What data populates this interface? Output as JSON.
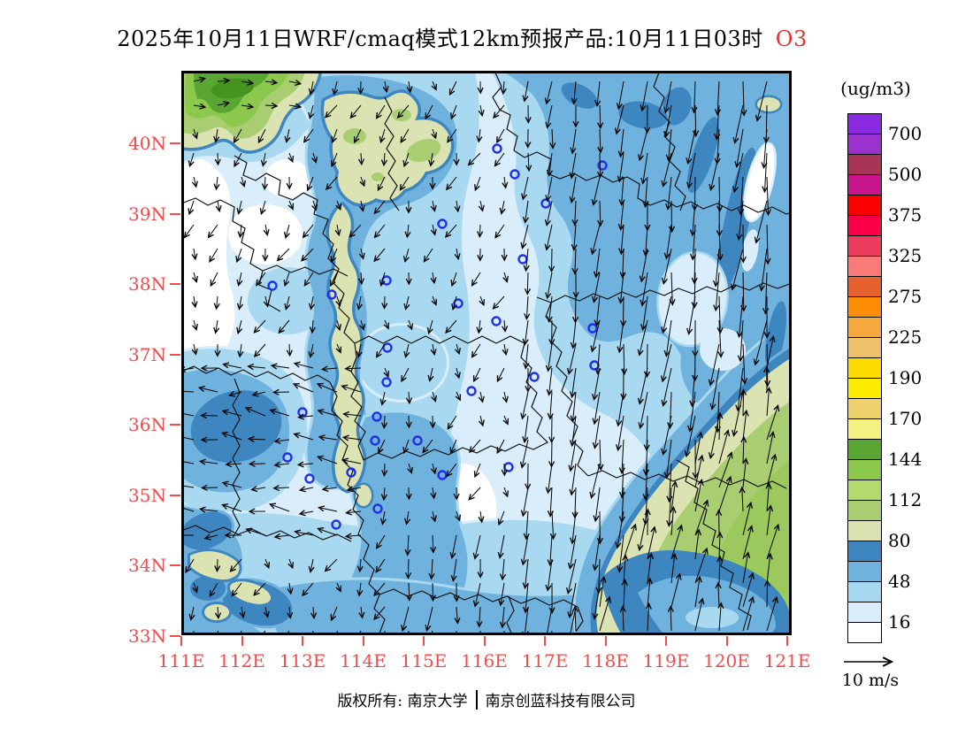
{
  "title": {
    "text": "2025年10月11日WRF/cmaq模式12km预报产品:10月11日03时",
    "pollutant": "O3"
  },
  "axes": {
    "lat_labels": [
      "40N",
      "39N",
      "38N",
      "37N",
      "36N",
      "35N",
      "34N",
      "33N"
    ],
    "lon_labels": [
      "111E",
      "112E",
      "113E",
      "114E",
      "115E",
      "116E",
      "117E",
      "118E",
      "119E",
      "120E",
      "121E"
    ]
  },
  "colorbar": {
    "unit": "(ug/m3)",
    "tick_labels": [
      "700",
      "500",
      "375",
      "325",
      "275",
      "225",
      "190",
      "170",
      "144",
      "112",
      "80",
      "48",
      "16"
    ],
    "cell_colors_top_to_bottom": [
      "#8A2BE2",
      "#9A32CD",
      "#A83456",
      "#C7158C",
      "#FA0000",
      "#FB0046",
      "#EE3C5F",
      "#F97A76",
      "#E7612E",
      "#FC8D04",
      "#F3A93D",
      "#EEC06C",
      "#FEDC00",
      "#FEEC00",
      "#EDD26E",
      "#F6F183",
      "#5BA633",
      "#8CC84B",
      "#B4D96E",
      "#A9CE72",
      "#DCE3B2",
      "#3E86C0",
      "#70B2DE",
      "#A9D9F1",
      "#D9EDFA",
      "#FFFFFF"
    ]
  },
  "wind_legend": {
    "label": "10 m/s"
  },
  "footer": {
    "owner": "版权所有: 南京大学",
    "divider": "|",
    "company": "南京创蓝科技有限公司"
  },
  "colors": {
    "axis_label_red": "#F14B4B",
    "pollutant_red": "#E93030",
    "map_palette": {
      "white": "#FFFFFF",
      "blue_palest": "#D9EDFA",
      "blue_light": "#A9D9F1",
      "blue_medium": "#70B2DE",
      "blue_steel": "#3E86C0",
      "olive": "#DCE3B2",
      "green_light": "#A9CE72",
      "green_mid": "#8CC84B",
      "green": "#5BA633",
      "green_dark": "#44941F"
    },
    "city_marker_blue": "#2030E8",
    "boundary_black": "#101010"
  },
  "chart_data": {
    "type": "heatmap",
    "title": "2025年10月11日WRF/cmaq模式12km预报产品:10月11日03时 O3",
    "variable": "O3",
    "unit": "ug/m3",
    "lon_range": [
      111,
      121
    ],
    "lat_range": [
      33,
      41
    ],
    "contour_levels": [
      16,
      48,
      80,
      112,
      144,
      170,
      190,
      225,
      275,
      325,
      375,
      500,
      700
    ],
    "wind_reference": "10 m/s",
    "field_summary": [
      {
        "region": "west / northwest interior",
        "o3_ug_m3": "0-16 white areas with 16-48 pale blue patches"
      },
      {
        "region": "top-left corner",
        "o3_ug_m3": "112-170 green maximum"
      },
      {
        "region": "north-center patches and sinuous ridge",
        "o3_ug_m3": "80-112 olive bounded by 48-80 dark blue"
      },
      {
        "region": "east and northeast half",
        "o3_ug_m3": "16-80 light to medium blue with 48-80 streaks"
      },
      {
        "region": "southeast corner",
        "o3_ug_m3": "80-144 olive to green"
      },
      {
        "region": "bottom-right tongue",
        "o3_ug_m3": "16-80 blue intrusion inside green"
      }
    ],
    "wind_summary": [
      {
        "region": "east half",
        "direction": "southward",
        "relative_speed": "strong (long vectors)"
      },
      {
        "region": "southeast corner",
        "direction": "northward",
        "relative_speed": "moderate"
      },
      {
        "region": "west half",
        "direction": "weak southerly/westerly",
        "relative_speed": "light"
      }
    ]
  }
}
